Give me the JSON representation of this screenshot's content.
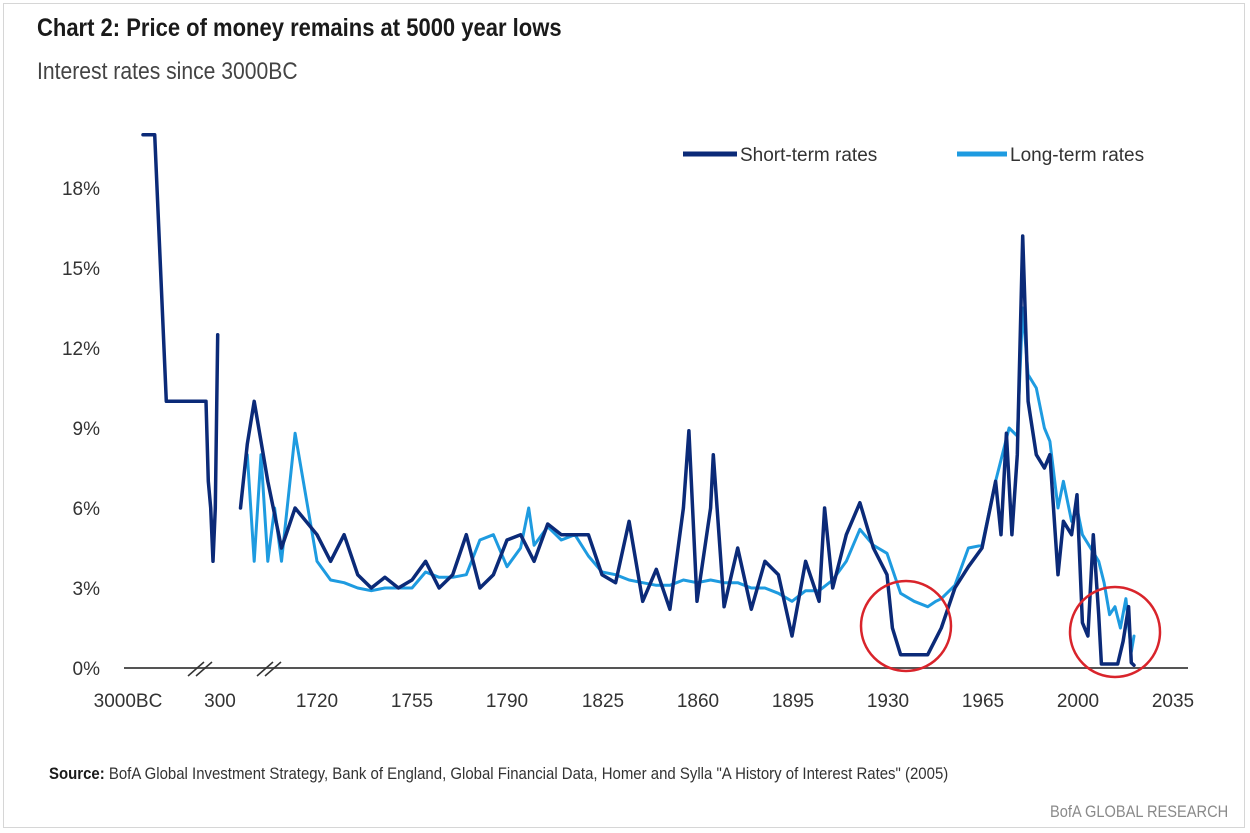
{
  "header": {
    "title": "Chart 2: Price of money remains at 5000 year lows",
    "subtitle": "Interest rates since 3000BC"
  },
  "footer": {
    "source_label": "Source:",
    "source_text": "BofA Global Investment Strategy, Bank of England, Global Financial Data, Homer and Sylla \"A History of Interest Rates\" (2005)",
    "brand": "BofA GLOBAL RESEARCH"
  },
  "colors": {
    "short_term": "#0b2a78",
    "long_term": "#1e9be0",
    "highlight_circle": "#d9242b",
    "axis": "#555555"
  },
  "chart_data": {
    "type": "line",
    "title": "Chart 2: Price of money remains at 5000 year lows",
    "subtitle": "Interest rates since 3000BC",
    "xlabel": "",
    "ylabel": "",
    "x_axis_note": "broken axis: 3000BC, 300 and 1720 segments compressed",
    "x_ticks": [
      "3000BC",
      "300",
      "1720",
      "1755",
      "1790",
      "1825",
      "1860",
      "1895",
      "1930",
      "1965",
      "2000",
      "2035"
    ],
    "y_ticks": [
      "0%",
      "3%",
      "6%",
      "9%",
      "12%",
      "15%",
      "18%"
    ],
    "ylim": [
      0,
      20
    ],
    "grid": false,
    "legend_position": "top-right",
    "annotations": [
      "circle around 1930s lows",
      "circle around 2010s lows"
    ],
    "series": [
      {
        "name": "Short-term rates",
        "points": [
          [
            "3000BC",
            20
          ],
          [
            "-2500",
            20
          ],
          [
            "-2000",
            10
          ],
          [
            "-1000",
            10
          ],
          [
            "-500",
            10
          ],
          [
            "-300",
            10
          ],
          [
            "-200",
            7
          ],
          [
            "-100",
            6
          ],
          [
            "0",
            4
          ],
          [
            "100",
            6
          ],
          [
            "200",
            12.5
          ],
          [
            null,
            null
          ],
          [
            "600",
            6
          ],
          [
            "700",
            8.4
          ],
          [
            "800",
            10
          ],
          [
            "1000",
            7
          ],
          [
            "1200",
            4.5
          ],
          [
            "1400",
            6
          ],
          [
            "1720",
            5
          ],
          [
            "1725",
            4
          ],
          [
            "1730",
            5
          ],
          [
            "1735",
            3.5
          ],
          [
            "1740",
            3
          ],
          [
            "1745",
            3.4
          ],
          [
            "1750",
            3
          ],
          [
            "1755",
            3.3
          ],
          [
            "1760",
            4
          ],
          [
            "1765",
            3
          ],
          [
            "1770",
            3.5
          ],
          [
            "1775",
            5
          ],
          [
            "1780",
            3
          ],
          [
            "1785",
            3.5
          ],
          [
            "1790",
            4.8
          ],
          [
            "1795",
            5
          ],
          [
            "1800",
            4
          ],
          [
            "1805",
            5.4
          ],
          [
            "1810",
            5
          ],
          [
            "1815",
            5
          ],
          [
            "1820",
            5
          ],
          [
            "1825",
            3.5
          ],
          [
            "1830",
            3.2
          ],
          [
            "1835",
            5.5
          ],
          [
            "1840",
            2.5
          ],
          [
            "1845",
            3.7
          ],
          [
            "1850",
            2.2
          ],
          [
            "1855",
            6
          ],
          [
            "1857",
            8.9
          ],
          [
            "1860",
            2.5
          ],
          [
            "1865",
            6
          ],
          [
            "1866",
            8
          ],
          [
            "1870",
            2.3
          ],
          [
            "1875",
            4.5
          ],
          [
            "1880",
            2.2
          ],
          [
            "1885",
            4
          ],
          [
            "1890",
            3.5
          ],
          [
            "1895",
            1.2
          ],
          [
            "1900",
            4
          ],
          [
            "1905",
            2.5
          ],
          [
            "1907",
            6
          ],
          [
            "1910",
            3
          ],
          [
            "1915",
            5
          ],
          [
            "1920",
            6.2
          ],
          [
            "1925",
            4.5
          ],
          [
            "1930",
            3.5
          ],
          [
            "1932",
            1.5
          ],
          [
            "1935",
            0.5
          ],
          [
            "1939",
            0.5
          ],
          [
            "1945",
            0.5
          ],
          [
            "1950",
            1.5
          ],
          [
            "1955",
            3
          ],
          [
            "1960",
            3.8
          ],
          [
            "1965",
            4.5
          ],
          [
            "1970",
            7
          ],
          [
            "1972",
            5
          ],
          [
            "1974",
            8.8
          ],
          [
            "1976",
            5
          ],
          [
            "1978",
            8
          ],
          [
            "1980",
            16.2
          ],
          [
            "1982",
            10
          ],
          [
            "1985",
            8
          ],
          [
            "1988",
            7.5
          ],
          [
            "1990",
            8
          ],
          [
            "1993",
            3.5
          ],
          [
            "1995",
            5.5
          ],
          [
            "1998",
            5
          ],
          [
            "2000",
            6.5
          ],
          [
            "2002",
            1.7
          ],
          [
            "2004",
            1.2
          ],
          [
            "2006",
            5
          ],
          [
            "2008",
            2
          ],
          [
            "2009",
            0.15
          ],
          [
            "2015",
            0.15
          ],
          [
            "2017",
            1
          ],
          [
            "2019",
            2.3
          ],
          [
            "2020",
            0.2
          ],
          [
            "2021",
            0.1
          ]
        ]
      },
      {
        "name": "Long-term rates",
        "points": [
          [
            "700",
            8
          ],
          [
            "800",
            4
          ],
          [
            "900",
            8
          ],
          [
            "1000",
            4
          ],
          [
            "1100",
            6
          ],
          [
            "1200",
            4
          ],
          [
            "1400",
            8.8
          ],
          [
            "1720",
            4
          ],
          [
            "1725",
            3.3
          ],
          [
            "1730",
            3.2
          ],
          [
            "1735",
            3
          ],
          [
            "1740",
            2.9
          ],
          [
            "1745",
            3
          ],
          [
            "1750",
            3
          ],
          [
            "1755",
            3
          ],
          [
            "1760",
            3.6
          ],
          [
            "1765",
            3.4
          ],
          [
            "1770",
            3.4
          ],
          [
            "1775",
            3.5
          ],
          [
            "1780",
            4.8
          ],
          [
            "1785",
            5
          ],
          [
            "1790",
            3.8
          ],
          [
            "1795",
            4.5
          ],
          [
            "1798",
            6
          ],
          [
            "1800",
            4.6
          ],
          [
            "1805",
            5.3
          ],
          [
            "1810",
            4.8
          ],
          [
            "1815",
            5
          ],
          [
            "1820",
            4.2
          ],
          [
            "1825",
            3.6
          ],
          [
            "1830",
            3.5
          ],
          [
            "1835",
            3.3
          ],
          [
            "1840",
            3.2
          ],
          [
            "1845",
            3.1
          ],
          [
            "1850",
            3.1
          ],
          [
            "1855",
            3.3
          ],
          [
            "1860",
            3.2
          ],
          [
            "1865",
            3.3
          ],
          [
            "1870",
            3.2
          ],
          [
            "1875",
            3.2
          ],
          [
            "1880",
            3
          ],
          [
            "1885",
            3
          ],
          [
            "1890",
            2.8
          ],
          [
            "1895",
            2.5
          ],
          [
            "1900",
            2.9
          ],
          [
            "1905",
            2.9
          ],
          [
            "1910",
            3.3
          ],
          [
            "1915",
            4
          ],
          [
            "1920",
            5.2
          ],
          [
            "1925",
            4.6
          ],
          [
            "1930",
            4.3
          ],
          [
            "1935",
            2.8
          ],
          [
            "1940",
            2.5
          ],
          [
            "1945",
            2.3
          ],
          [
            "1948",
            2.5
          ],
          [
            "1950",
            2.6
          ],
          [
            "1955",
            3.1
          ],
          [
            "1960",
            4.5
          ],
          [
            "1965",
            4.6
          ],
          [
            "1970",
            7
          ],
          [
            "1975",
            9
          ],
          [
            "1978",
            8.7
          ],
          [
            "1980",
            13.5
          ],
          [
            "1982",
            11
          ],
          [
            "1985",
            10.5
          ],
          [
            "1988",
            9
          ],
          [
            "1990",
            8.5
          ],
          [
            "1993",
            6
          ],
          [
            "1995",
            7
          ],
          [
            "1998",
            5.5
          ],
          [
            "2000",
            6
          ],
          [
            "2002",
            5
          ],
          [
            "2005",
            4.5
          ],
          [
            "2008",
            4
          ],
          [
            "2010",
            3.2
          ],
          [
            "2012",
            2
          ],
          [
            "2014",
            2.3
          ],
          [
            "2016",
            1.5
          ],
          [
            "2018",
            2.6
          ],
          [
            "2020",
            0.6
          ],
          [
            "2021",
            1.2
          ]
        ]
      }
    ]
  }
}
